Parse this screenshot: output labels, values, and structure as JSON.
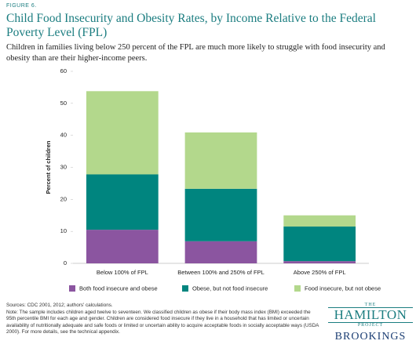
{
  "figure_label": "FIGURE 6.",
  "chart_data": {
    "type": "stacked_bar",
    "title": "Child Food Insecurity and Obesity Rates, by Income Relative to the Federal Poverty Level (FPL)",
    "subtitle": "Children in families living below 250 percent of the FPL are much more likely to struggle with food insecurity and obesity than are their higher-income peers.",
    "y_label": "Percent of children",
    "categories": [
      "Below 100% of FPL",
      "Between 100% and 250% of FPL",
      "Above 250% of FPL"
    ],
    "series": [
      {
        "name": "Both food insecure and obese",
        "color": "#8b55a0",
        "values": [
          10.5,
          6.9,
          0.7
        ]
      },
      {
        "name": "Obese, but not food insecure",
        "color": "#00857f",
        "values": [
          17.3,
          16.4,
          10.8
        ]
      },
      {
        "name": "Food insecure, but not obese",
        "color": "#b3d88c",
        "values": [
          26,
          17.6,
          3.5
        ]
      }
    ],
    "ylim": [
      0,
      60
    ],
    "yticks": [
      0,
      10,
      20,
      30,
      40,
      50,
      60
    ],
    "grid": false,
    "legend": "bottom"
  },
  "sources": "Sources: CDC 2001, 2012; authors' calculations.",
  "note": "Note: The sample includes children aged twelve to seventeen. We classified children as obese if their body mass index (BMI) exceeded the 95th percentile BMI for each age and gender. Children are considered food insecure if they live in a household that has limited or uncertain availability of nutritionally adequate and safe foods or limited or uncertain ability to acquire acceptable foods in socially acceptable ways (USDA 2000). For more details, see the technical appendix.",
  "logo": {
    "the": "THE",
    "name": "HAMILTON",
    "project": "PROJECT",
    "brand": "BROOKINGS"
  }
}
